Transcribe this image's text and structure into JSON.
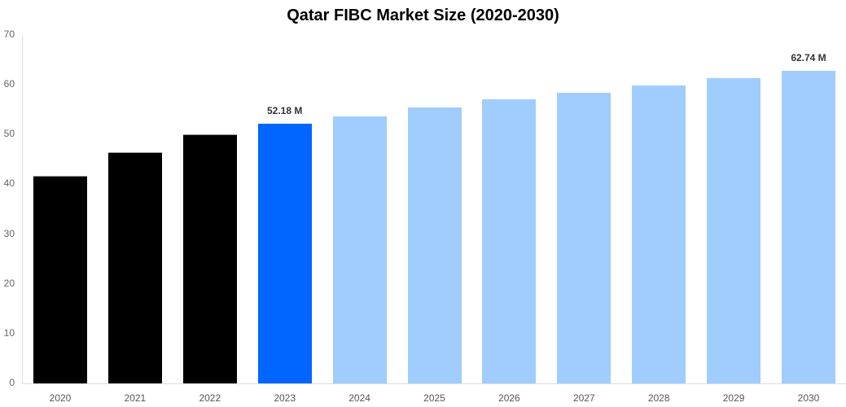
{
  "chart_data": {
    "type": "bar",
    "title": "Qatar FIBC Market Size (2020-2030)",
    "xlabel": "",
    "ylabel": "",
    "ylim": [
      0,
      70
    ],
    "yticks": [
      0,
      10,
      20,
      30,
      40,
      50,
      60,
      70
    ],
    "grid": false,
    "legend": null,
    "categories": [
      "2020",
      "2021",
      "2022",
      "2023",
      "2024",
      "2025",
      "2026",
      "2027",
      "2028",
      "2029",
      "2030"
    ],
    "values": [
      41.7,
      46.5,
      50.1,
      52.18,
      53.7,
      55.4,
      57.0,
      58.4,
      59.8,
      61.3,
      62.74
    ],
    "bar_colors": [
      "#000000",
      "#000000",
      "#000000",
      "#0066ff",
      "#a0cdfd",
      "#a0cdfd",
      "#a0cdfd",
      "#a0cdfd",
      "#a0cdfd",
      "#a0cdfd",
      "#a0cdfd"
    ],
    "annotations": [
      {
        "category": "2023",
        "text": "52.18 M"
      },
      {
        "category": "2030",
        "text": "62.74 M"
      }
    ]
  }
}
